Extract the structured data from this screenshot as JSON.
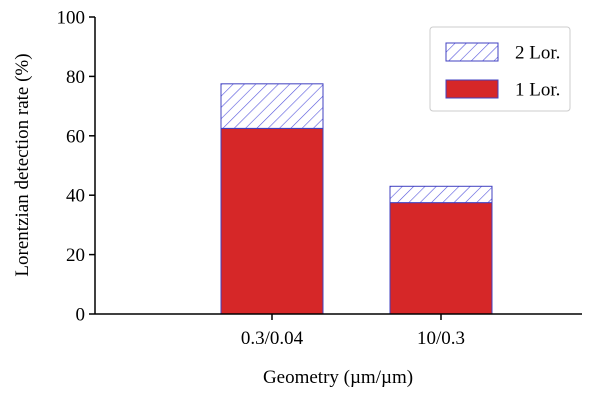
{
  "chart_data": {
    "type": "bar",
    "stacked": true,
    "title": "",
    "xlabel": "Geometry (µm/µm)",
    "ylabel": "Lorentzian detection rate (%)",
    "categories": [
      "0.3/0.04",
      "10/0.3"
    ],
    "ylim": [
      0,
      100
    ],
    "yticks": [
      0,
      20,
      40,
      60,
      80,
      100
    ],
    "grid": false,
    "legend_position": "top-right",
    "series": [
      {
        "name": "1 Lor.",
        "values": [
          62.5,
          37.5
        ],
        "fill": "solid",
        "color": "#d62728",
        "edge_color": "#4040c0"
      },
      {
        "name": "2 Lor.",
        "values": [
          15,
          5.5
        ],
        "fill": "hatch",
        "color": "#ffffff",
        "hatch_color": "#5555dd",
        "edge_color": "#4040c0"
      }
    ],
    "legend_order": [
      "2 Lor.",
      "1 Lor."
    ]
  }
}
